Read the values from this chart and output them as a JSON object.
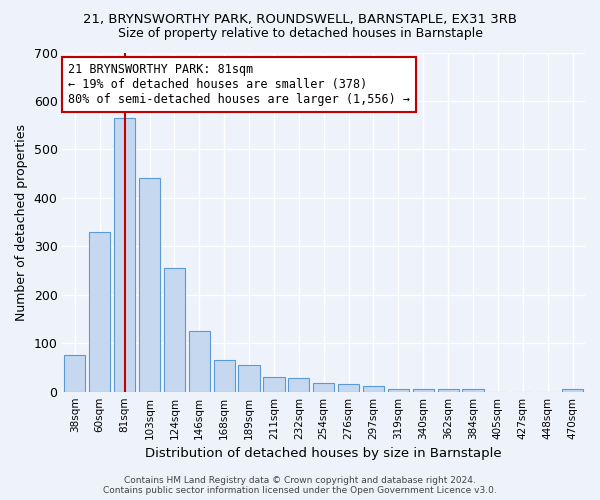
{
  "title": "21, BRYNSWORTHY PARK, ROUNDSWELL, BARNSTAPLE, EX31 3RB",
  "subtitle": "Size of property relative to detached houses in Barnstaple",
  "xlabel": "Distribution of detached houses by size in Barnstaple",
  "ylabel": "Number of detached properties",
  "categories": [
    "38sqm",
    "60sqm",
    "81sqm",
    "103sqm",
    "124sqm",
    "146sqm",
    "168sqm",
    "189sqm",
    "211sqm",
    "232sqm",
    "254sqm",
    "276sqm",
    "297sqm",
    "319sqm",
    "340sqm",
    "362sqm",
    "384sqm",
    "405sqm",
    "427sqm",
    "448sqm",
    "470sqm"
  ],
  "values": [
    75,
    330,
    565,
    440,
    255,
    125,
    65,
    55,
    30,
    28,
    17,
    16,
    12,
    5,
    5,
    5,
    5,
    0,
    0,
    0,
    5
  ],
  "bar_color": "#c5d8f0",
  "bar_edge_color": "#5b9bd5",
  "highlight_bar_index": 2,
  "highlight_color": "#c00000",
  "annotation_text": "21 BRYNSWORTHY PARK: 81sqm\n← 19% of detached houses are smaller (378)\n80% of semi-detached houses are larger (1,556) →",
  "annotation_box_color": "#ffffff",
  "annotation_box_edge_color": "#c00000",
  "ylim": [
    0,
    700
  ],
  "yticks": [
    0,
    100,
    200,
    300,
    400,
    500,
    600,
    700
  ],
  "background_color": "#eef2fb",
  "grid_color": "#ffffff",
  "footer_text": "Contains HM Land Registry data © Crown copyright and database right 2024.\nContains public sector information licensed under the Open Government Licence v3.0."
}
